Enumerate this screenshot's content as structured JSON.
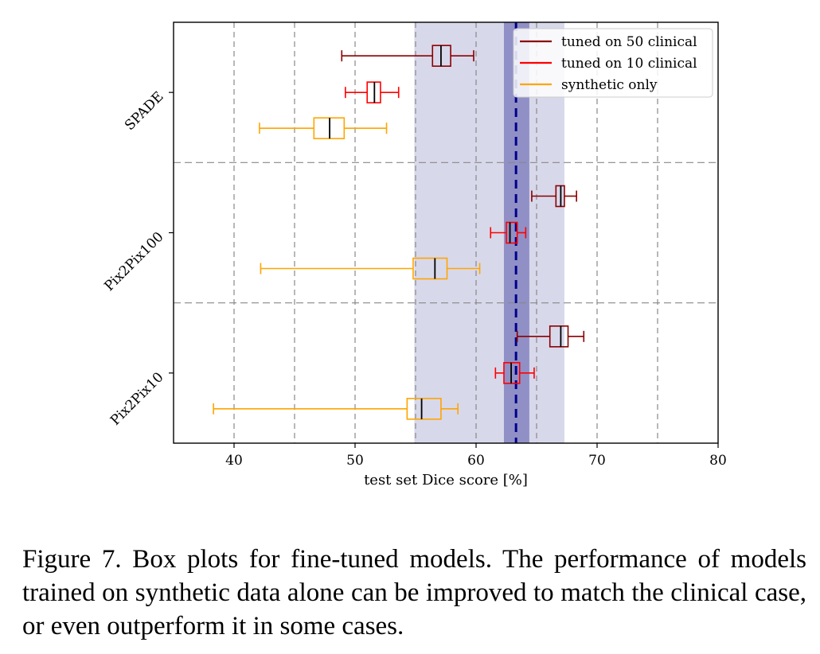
{
  "chart_data": {
    "type": "boxplot",
    "orientation": "horizontal",
    "xlabel": "test set Dice score [%]",
    "xlim": [
      35,
      80
    ],
    "xticks": [
      40,
      50,
      60,
      70,
      80
    ],
    "grid": "dashed vertical at 40, 45, 50, 55, 60, 65, 70, 75",
    "categories": [
      "SPADE",
      "Pix2Pix100",
      "Pix2Pix10"
    ],
    "series": [
      {
        "name": "tuned on 50 clinical",
        "color": "#8b0000",
        "boxes": [
          {
            "category": "SPADE",
            "min": 48.9,
            "q1": 56.4,
            "median": 57.1,
            "q3": 57.9,
            "max": 59.8
          },
          {
            "category": "Pix2Pix100",
            "min": 64.6,
            "q1": 66.6,
            "median": 67.0,
            "q3": 67.3,
            "max": 68.3
          },
          {
            "category": "Pix2Pix10",
            "min": 63.4,
            "q1": 66.1,
            "median": 67.0,
            "q3": 67.6,
            "max": 68.9
          }
        ]
      },
      {
        "name": "tuned on 10 clinical",
        "color": "#ff0000",
        "boxes": [
          {
            "category": "SPADE",
            "min": 49.2,
            "q1": 51.0,
            "median": 51.6,
            "q3": 52.1,
            "max": 53.6
          },
          {
            "category": "Pix2Pix100",
            "min": 61.2,
            "q1": 62.5,
            "median": 62.8,
            "q3": 63.4,
            "max": 64.1
          },
          {
            "category": "Pix2Pix10",
            "min": 61.6,
            "q1": 62.3,
            "median": 62.9,
            "q3": 63.6,
            "max": 64.8
          }
        ]
      },
      {
        "name": "synthetic only",
        "color": "#ffa500",
        "boxes": [
          {
            "category": "SPADE",
            "min": 42.1,
            "q1": 46.6,
            "median": 47.9,
            "q3": 49.1,
            "max": 52.6
          },
          {
            "category": "Pix2Pix100",
            "min": 42.2,
            "q1": 54.8,
            "median": 56.6,
            "q3": 57.6,
            "max": 60.3
          },
          {
            "category": "Pix2Pix10",
            "min": 38.3,
            "q1": 54.3,
            "median": 55.5,
            "q3": 57.1,
            "max": 58.5
          }
        ]
      }
    ],
    "reference": {
      "line_value": 63.3,
      "line_color": "#00008b",
      "inner_band": [
        62.3,
        64.4
      ],
      "outer_band": [
        54.9,
        67.3
      ],
      "band_color": "#3a3a9a"
    },
    "legend_position": "top-right"
  },
  "caption": "Figure 7. Box plots for fine-tuned models. The performance of models trained on synthetic data alone can be improved to match the clinical case, or even outperform it in some cases."
}
